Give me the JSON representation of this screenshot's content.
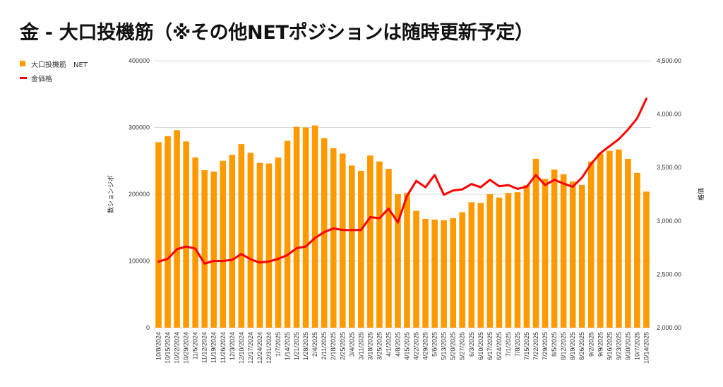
{
  "title": "金 - 大口投機筋（※その他NETポジションは随時更新予定）",
  "legend": {
    "bar": "大口投機筋　NET",
    "line": "金価格"
  },
  "colors": {
    "bar": "#ff9900",
    "line": "#ff0000",
    "grid": "#d9d9d9"
  },
  "chart_data": {
    "type": "bar",
    "title": "金 - 大口投機筋（※その他NETポジションは随時更新予定）",
    "ylabel": "数ションジポ",
    "y2label": "格価",
    "legend_position": "top-left",
    "grid": true,
    "ylim": [
      0,
      400000
    ],
    "y2lim": [
      2000,
      4500
    ],
    "y_ticks": [
      "0",
      "100000",
      "200000",
      "300000",
      "400000"
    ],
    "y2_ticks": [
      "2,000.00",
      "2,500.00",
      "3,000.00",
      "3,500.00",
      "4,000.00",
      "4,500.00"
    ],
    "x_labels": [
      "10/8/2024",
      "10/15/2024",
      "10/22/2024",
      "10/29/2024",
      "11/5/2024",
      "11/12/2024",
      "11/19/2024",
      "11/26/2024",
      "12/3/2024",
      "12/10/2024",
      "12/17/2024",
      "12/24/2024",
      "12/31/2024",
      "1/7/2025",
      "1/14/2025",
      "1/21/2025",
      "1/28/2025",
      "2/4/2025",
      "2/11/2025",
      "2/18/2025",
      "2/25/2025",
      "3/4/2025",
      "3/11/2025",
      "3/18/2025",
      "3/25/2025",
      "4/1/2025",
      "4/8/2025",
      "4/15/2025",
      "4/22/2025",
      "4/29/2025",
      "5/6/2025",
      "5/13/2025",
      "5/20/2025",
      "5/27/2025",
      "6/3/2025",
      "6/10/2025",
      "6/17/2025",
      "6/24/2025",
      "7/1/2025",
      "7/8/2025",
      "7/15/2025",
      "7/22/2025",
      "7/29/2025",
      "8/5/2025",
      "8/12/2025",
      "8/19/2025",
      "8/26/2025",
      "9/2/2025",
      "9/9/2025",
      "9/16/2025",
      "9/23/2025",
      "9/30/2025",
      "10/7/2025",
      "10/14/2025"
    ],
    "series": [
      {
        "name": "大口投機筋　NET",
        "type": "bar",
        "axis": "left",
        "values": [
          278000,
          287000,
          296000,
          279000,
          255000,
          236000,
          234000,
          250000,
          259000,
          275000,
          262000,
          247000,
          246000,
          255000,
          280000,
          301000,
          300000,
          303000,
          284000,
          269000,
          261000,
          243000,
          235000,
          258000,
          249000,
          238000,
          200000,
          202000,
          175000,
          163000,
          162000,
          161000,
          164000,
          173000,
          188000,
          187000,
          200000,
          195000,
          202000,
          203000,
          214000,
          253000,
          223000,
          237000,
          230000,
          219000,
          214000,
          249000,
          261000,
          265000,
          267000,
          253000,
          232000,
          204000
        ]
      },
      {
        "name": "金価格",
        "type": "line",
        "axis": "right",
        "values": [
          2618,
          2645,
          2735,
          2760,
          2740,
          2600,
          2625,
          2625,
          2635,
          2690,
          2640,
          2610,
          2620,
          2645,
          2680,
          2745,
          2760,
          2840,
          2895,
          2930,
          2915,
          2915,
          2915,
          3035,
          3025,
          3115,
          2985,
          3235,
          3375,
          3315,
          3430,
          3245,
          3285,
          3295,
          3345,
          3315,
          3385,
          3325,
          3335,
          3300,
          3320,
          3430,
          3335,
          3385,
          3350,
          3320,
          3405,
          3535,
          3635,
          3700,
          3765,
          3855,
          3960,
          4145
        ]
      }
    ]
  }
}
